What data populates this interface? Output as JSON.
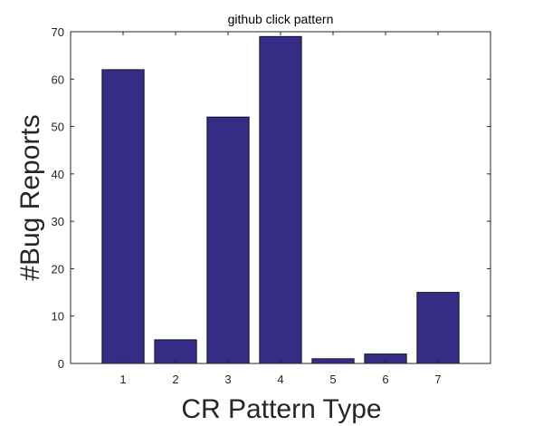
{
  "chart_data": {
    "type": "bar",
    "title": "github click pattern",
    "xlabel": "CR Pattern Type",
    "ylabel": "#Bug Reports",
    "categories": [
      "1",
      "2",
      "3",
      "4",
      "5",
      "6",
      "7"
    ],
    "values": [
      62,
      5,
      52,
      69,
      1,
      2,
      15
    ],
    "ylim": [
      0,
      70
    ],
    "yticks": [
      "0",
      "10",
      "20",
      "30",
      "40",
      "50",
      "60",
      "70"
    ],
    "xlim": [
      0,
      8
    ],
    "bar_color": "#342c85",
    "grid": false,
    "legend": "none"
  }
}
